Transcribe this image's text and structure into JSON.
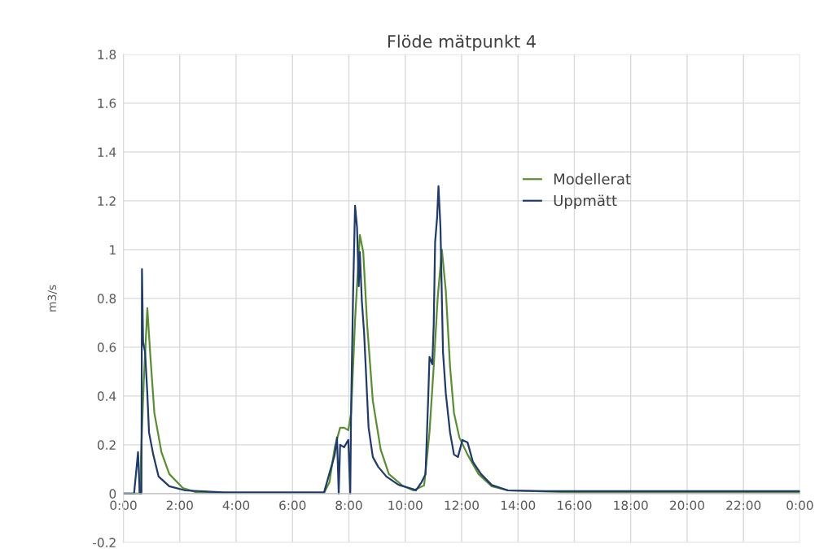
{
  "chart_data": {
    "type": "line",
    "title": "Flöde mätpunkt 4",
    "ylabel": "m3/s",
    "xlim": [
      0,
      24
    ],
    "ylim": [
      -0.2,
      1.8
    ],
    "xticks": [
      {
        "value": 0,
        "label": "0:00"
      },
      {
        "value": 2,
        "label": "2:00"
      },
      {
        "value": 4,
        "label": "4:00"
      },
      {
        "value": 6,
        "label": "6:00"
      },
      {
        "value": 8,
        "label": "8:00"
      },
      {
        "value": 10,
        "label": "10:00"
      },
      {
        "value": 12,
        "label": "12:00"
      },
      {
        "value": 14,
        "label": "14:00"
      },
      {
        "value": 16,
        "label": "16:00"
      },
      {
        "value": 18,
        "label": "18:00"
      },
      {
        "value": 20,
        "label": "20:00"
      },
      {
        "value": 22,
        "label": "22:00"
      },
      {
        "value": 24,
        "label": "0:00"
      }
    ],
    "yticks": [
      {
        "value": -0.2,
        "label": "-0.2"
      },
      0,
      0.2,
      0.4,
      0.6,
      0.8,
      1,
      1.2,
      1.4,
      1.6,
      1.8
    ],
    "grid": true,
    "legend": "right",
    "marker": "none",
    "line_style": "solid",
    "series": [
      {
        "name": "Modellerat",
        "color": "#5a8f2e",
        "x": [
          0,
          0.58,
          0.72,
          0.85,
          0.96,
          1.1,
          1.35,
          1.63,
          2.11,
          2.6,
          4,
          6,
          7.12,
          7.31,
          7.5,
          7.69,
          7.83,
          7.98,
          8.08,
          8.22,
          8.39,
          8.51,
          8.65,
          8.85,
          9.13,
          9.42,
          9.9,
          10.29,
          10.67,
          10.86,
          11.01,
          11.15,
          11.3,
          11.44,
          11.59,
          11.73,
          11.92,
          12.21,
          12.6,
          13.07,
          13.65,
          16,
          20,
          24
        ],
        "values": [
          0,
          0,
          0.45,
          0.76,
          0.56,
          0.33,
          0.17,
          0.08,
          0.023,
          0.005,
          0.003,
          0.003,
          0.003,
          0.046,
          0.19,
          0.27,
          0.27,
          0.26,
          0.33,
          0.71,
          1.06,
          0.99,
          0.69,
          0.38,
          0.18,
          0.08,
          0.033,
          0.013,
          0.034,
          0.25,
          0.52,
          0.8,
          1.0,
          0.83,
          0.52,
          0.33,
          0.23,
          0.16,
          0.08,
          0.03,
          0.013,
          0.005,
          0.005,
          0.005
        ]
      },
      {
        "name": "Uppmätt",
        "color": "#1f3a6e",
        "x": [
          0,
          0.38,
          0.52,
          0.58,
          0.64,
          0.66,
          0.7,
          0.77,
          0.85,
          0.91,
          1.06,
          1.25,
          1.63,
          2.2,
          3.55,
          5,
          7.12,
          7.5,
          7.58,
          7.64,
          7.69,
          7.83,
          7.98,
          8.05,
          8.08,
          8.15,
          8.22,
          8.29,
          8.35,
          8.39,
          8.46,
          8.54,
          8.61,
          8.7,
          8.85,
          9.04,
          9.33,
          9.71,
          9.81,
          10.29,
          10.38,
          10.58,
          10.72,
          10.82,
          10.86,
          10.96,
          11.01,
          11.06,
          11.13,
          11.18,
          11.25,
          11.3,
          11.34,
          11.44,
          11.59,
          11.73,
          11.87,
          12.03,
          12.21,
          12.4,
          12.69,
          13.07,
          13.65,
          15,
          17,
          19,
          21,
          23,
          24
        ],
        "values": [
          0,
          0,
          0.17,
          0,
          0,
          0.92,
          0.62,
          0.58,
          0.41,
          0.25,
          0.16,
          0.07,
          0.03,
          0.013,
          0.005,
          0.005,
          0.005,
          0.16,
          0.23,
          0,
          0.2,
          0.19,
          0.22,
          0,
          0.35,
          0.82,
          1.18,
          1.09,
          0.85,
          0.99,
          0.79,
          0.66,
          0.49,
          0.27,
          0.15,
          0.11,
          0.07,
          0.04,
          0.034,
          0.018,
          0.013,
          0.047,
          0.08,
          0.41,
          0.56,
          0.53,
          0.69,
          1.03,
          1.13,
          1.26,
          1.09,
          0.8,
          0.58,
          0.41,
          0.25,
          0.16,
          0.15,
          0.22,
          0.21,
          0.13,
          0.08,
          0.035,
          0.013,
          0.01,
          0.01,
          0.01,
          0.01,
          0.01,
          0.01
        ]
      }
    ]
  }
}
